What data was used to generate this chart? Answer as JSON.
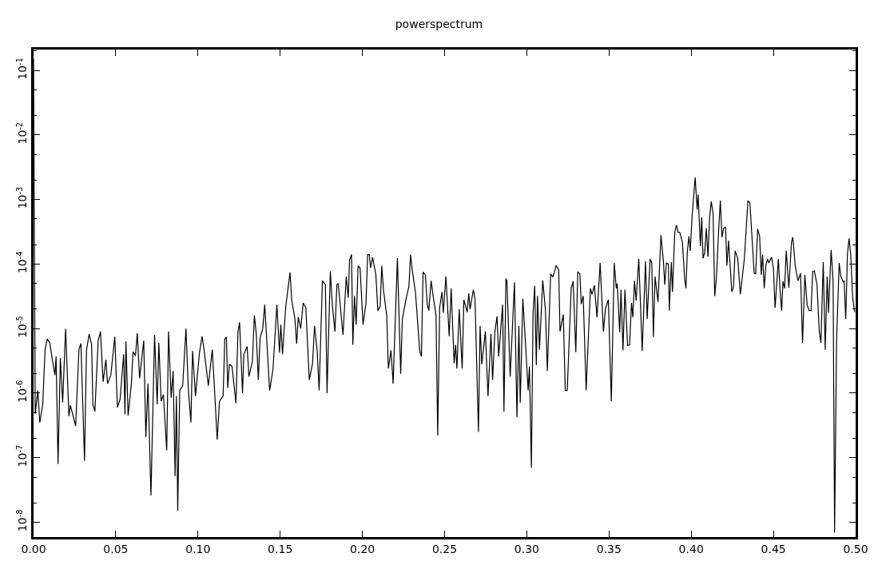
{
  "chart_data": {
    "type": "line",
    "title": "powerspectrum",
    "log": "y",
    "grid": false,
    "line_style": "solid",
    "marker": "none",
    "color": "#000000",
    "xlim": [
      0,
      0.5
    ],
    "ylim": [
      5.9e-09,
      0.21
    ],
    "xticks": [
      {
        "value": 0,
        "label": "0.00"
      },
      {
        "value": 0.05,
        "label": "0.05"
      },
      {
        "value": 0.1,
        "label": "0.10"
      },
      {
        "value": 0.15,
        "label": "0.15"
      },
      {
        "value": 0.2,
        "label": "0.20"
      },
      {
        "value": 0.25,
        "label": "0.25"
      },
      {
        "value": 0.3,
        "label": "0.30"
      },
      {
        "value": 0.35,
        "label": "0.35"
      },
      {
        "value": 0.4,
        "label": "0.40"
      },
      {
        "value": 0.45,
        "label": "0.45"
      },
      {
        "value": 0.5,
        "label": "0.50"
      }
    ],
    "yticks": [
      {
        "value": 1e-08,
        "label": "10$^{-8}$"
      },
      {
        "value": 1e-07,
        "label": "10$^{-7}$"
      },
      {
        "value": 1e-06,
        "label": "10$^{-6}$"
      },
      {
        "value": 1e-05,
        "label": "10$^{-5}$"
      },
      {
        "value": 0.0001,
        "label": "10$^{-4}$"
      },
      {
        "value": 0.001,
        "label": "10$^{-3}$"
      },
      {
        "value": 0.01,
        "label": "10$^{-2}$"
      },
      {
        "value": 0.1,
        "label": "10$^{-1}$"
      }
    ],
    "x": [
      0,
      0.001,
      0.0026,
      0.0038,
      0.0056,
      0.007,
      0.0083,
      0.0099,
      0.0115,
      0.013,
      0.0137,
      0.0149,
      0.0163,
      0.0177,
      0.0195,
      0.0215,
      0.0224,
      0.0256,
      0.0276,
      0.0288,
      0.031,
      0.0322,
      0.0338,
      0.0353,
      0.0361,
      0.0373,
      0.0393,
      0.0407,
      0.0423,
      0.044,
      0.045,
      0.047,
      0.0494,
      0.051,
      0.0526,
      0.0548,
      0.0556,
      0.0562,
      0.0575,
      0.0595,
      0.0605,
      0.062,
      0.0631,
      0.0645,
      0.067,
      0.0683,
      0.0696,
      0.0714,
      0.0736,
      0.0752,
      0.0762,
      0.0776,
      0.079,
      0.081,
      0.0821,
      0.0837,
      0.0849,
      0.0861,
      0.0869,
      0.0877,
      0.0889,
      0.0907,
      0.0927,
      0.0941,
      0.0957,
      0.0967,
      0.0985,
      0.1009,
      0.1025,
      0.1037,
      0.1063,
      0.1087,
      0.1101,
      0.1117,
      0.1131,
      0.1153,
      0.1163,
      0.1173,
      0.1181,
      0.1191,
      0.1207,
      0.1231,
      0.1243,
      0.1253,
      0.1271,
      0.1279,
      0.1299,
      0.131,
      0.1331,
      0.1343,
      0.1355,
      0.1367,
      0.1378,
      0.1394,
      0.1406,
      0.1436,
      0.1456,
      0.148,
      0.1496,
      0.1504,
      0.1514,
      0.1534,
      0.156,
      0.157,
      0.159,
      0.16,
      0.161,
      0.1625,
      0.164,
      0.1656,
      0.1677,
      0.1697,
      0.1709,
      0.1725,
      0.1737,
      0.1757,
      0.1775,
      0.1785,
      0.1805,
      0.1817,
      0.1833,
      0.1845,
      0.1853,
      0.1882,
      0.1902,
      0.1914,
      0.1922,
      0.1934,
      0.1942,
      0.1952,
      0.1962,
      0.1974,
      0.1986,
      0.2004,
      0.2022,
      0.2032,
      0.2042,
      0.205,
      0.2062,
      0.2082,
      0.2094,
      0.2108,
      0.2118,
      0.2128,
      0.2148,
      0.2158,
      0.2174,
      0.2187,
      0.2213,
      0.2233,
      0.2243,
      0.2267,
      0.2283,
      0.2293,
      0.2303,
      0.2323,
      0.2349,
      0.2359,
      0.2369,
      0.2383,
      0.2395,
      0.2404,
      0.2418,
      0.2432,
      0.2448,
      0.2458,
      0.247,
      0.2484,
      0.2492,
      0.2508,
      0.2528,
      0.254,
      0.2558,
      0.2567,
      0.2575,
      0.2589,
      0.2607,
      0.2617,
      0.2637,
      0.2647,
      0.2655,
      0.2675,
      0.2685,
      0.2706,
      0.2716,
      0.2726,
      0.2748,
      0.2764,
      0.2782,
      0.2792,
      0.2806,
      0.2819,
      0.2829,
      0.2853,
      0.2861,
      0.2873,
      0.2879,
      0.2899,
      0.2925,
      0.294,
      0.2952,
      0.296,
      0.2976,
      0.2992,
      0.3008,
      0.3016,
      0.3028,
      0.3038,
      0.3048,
      0.3058,
      0.3065,
      0.3077,
      0.3097,
      0.3113,
      0.3125,
      0.3145,
      0.3159,
      0.3179,
      0.3194,
      0.3202,
      0.3222,
      0.3234,
      0.3246,
      0.327,
      0.3282,
      0.3298,
      0.331,
      0.3323,
      0.3331,
      0.3343,
      0.3361,
      0.3387,
      0.3397,
      0.3411,
      0.3427,
      0.3446,
      0.3466,
      0.3478,
      0.3496,
      0.3514,
      0.3532,
      0.3544,
      0.355,
      0.3565,
      0.3573,
      0.3585,
      0.3597,
      0.3613,
      0.3625,
      0.3637,
      0.3645,
      0.3655,
      0.3665,
      0.3681,
      0.3702,
      0.3722,
      0.3732,
      0.375,
      0.376,
      0.377,
      0.378,
      0.3798,
      0.3816,
      0.3831,
      0.3839,
      0.3849,
      0.3861,
      0.3867,
      0.3879,
      0.3886,
      0.39,
      0.391,
      0.392,
      0.393,
      0.3946,
      0.396,
      0.3968,
      0.3976,
      0.3986,
      0.3994,
      0.4006,
      0.4024,
      0.4036,
      0.4042,
      0.4056,
      0.4064,
      0.4072,
      0.4082,
      0.4092,
      0.4102,
      0.4112,
      0.4122,
      0.4133,
      0.4143,
      0.4153,
      0.4167,
      0.4177,
      0.4187,
      0.4197,
      0.4209,
      0.4217,
      0.4227,
      0.4247,
      0.4257,
      0.4267,
      0.4283,
      0.4299,
      0.4323,
      0.4345,
      0.4357,
      0.4383,
      0.4392,
      0.4404,
      0.4416,
      0.4426,
      0.4434,
      0.4444,
      0.4454,
      0.4464,
      0.4472,
      0.4488,
      0.45,
      0.451,
      0.453,
      0.454,
      0.455,
      0.4558,
      0.4568,
      0.4578,
      0.4594,
      0.461,
      0.4618,
      0.4633,
      0.4649,
      0.4665,
      0.4677,
      0.4691,
      0.4705,
      0.4717,
      0.4729,
      0.4739,
      0.4749,
      0.4765,
      0.4779,
      0.4789,
      0.4803,
      0.4815,
      0.4827,
      0.4835,
      0.4851,
      0.4863,
      0.4872,
      0.4884,
      0.49,
      0.491,
      0.4924,
      0.493,
      0.494,
      0.495,
      0.496,
      0.497,
      0.4982,
      0.4994
    ],
    "values": [
      0.15,
      4.8e-07,
      1.1e-06,
      3.5e-07,
      6.7e-07,
      4.7e-06,
      6.9e-06,
      6e-06,
      3.2e-06,
      1.9e-06,
      3.7e-06,
      8e-08,
      3.5e-06,
      7.2e-07,
      1e-05,
      4.4e-07,
      6.5e-07,
      3.1e-07,
      4.7e-06,
      5.9e-06,
      9e-08,
      4.6e-06,
      8.2e-06,
      5.7e-06,
      6.7e-07,
      5.2e-07,
      6.5e-06,
      9e-06,
      1.5e-06,
      3.3e-06,
      1.4e-06,
      1.9e-06,
      7.5e-06,
      6e-07,
      8e-07,
      4e-06,
      4.7e-07,
      6.3e-06,
      4.5e-07,
      1.4e-06,
      4.4e-06,
      3.8e-06,
      8.5e-06,
      1.7e-06,
      6.5e-06,
      2.1e-07,
      1.4e-06,
      2.6e-08,
      8e-06,
      6.7e-07,
      6e-06,
      7.5e-07,
      9.5e-07,
      1.3e-07,
      9e-06,
      8.5e-07,
      2.2e-06,
      5.2e-08,
      9e-07,
      1.5e-08,
      1.1e-06,
      1.3e-06,
      1e-05,
      1.2e-06,
      3.5e-07,
      4.5e-06,
      9e-07,
      4.2e-06,
      7.6e-06,
      4.7e-06,
      1.3e-06,
      4.7e-06,
      1.1e-06,
      1.9e-07,
      7.5e-07,
      9e-07,
      6.8e-06,
      7.4e-06,
      1.2e-06,
      2.8e-06,
      2.6e-06,
      7e-07,
      8.6e-06,
      1.25e-05,
      1e-06,
      4e-06,
      5.3e-06,
      1.8e-06,
      3.1e-06,
      1.6e-05,
      8e-06,
      1.6e-06,
      7.2e-06,
      1e-05,
      2.35e-05,
      1.1e-06,
      2.3e-06,
      2.35e-05,
      4.2e-06,
      1.15e-05,
      4e-06,
      2.2e-05,
      7.4e-05,
      2.8e-05,
      1.4e-05,
      5.8e-06,
      1.5e-05,
      1e-05,
      2.5e-05,
      2.1e-05,
      1.6e-06,
      2.9e-06,
      1.1e-05,
      4.5e-06,
      1.1e-06,
      5.5e-05,
      4.8e-05,
      1e-06,
      7.7e-05,
      2.35e-05,
      9e-06,
      4.8e-05,
      5e-05,
      8e-06,
      6.4e-05,
      3e-05,
      0.000115,
      0.00014,
      5.6e-06,
      3.2e-05,
      1.15e-05,
      9.4e-05,
      8.7e-05,
      1.15e-05,
      2.5e-05,
      0.00014,
      0.00014,
      8.7e-05,
      0.000127,
      6.8e-05,
      1.9e-05,
      2.2e-05,
      9.4e-05,
      4e-05,
      1.6e-05,
      2.4e-06,
      4.6e-06,
      1.4e-06,
      0.000123,
      2e-06,
      1.4e-05,
      3e-05,
      4.5e-05,
      0.00014,
      8.2e-05,
      3.6e-05,
      4.5e-06,
      3.7e-06,
      7.5e-05,
      6.8e-05,
      2.35e-05,
      1.9e-05,
      5.5e-05,
      3e-05,
      1.6e-05,
      2.2e-07,
      2.1e-05,
      3.7e-05,
      1.75e-05,
      6.4e-05,
      7.6e-06,
      4.2e-05,
      2.9e-06,
      5.6e-06,
      2.4e-06,
      2e-05,
      2.4e-06,
      2.8e-05,
      1.8e-05,
      3.5e-05,
      2e-05,
      4e-05,
      2.9e-05,
      2.5e-07,
      1.1e-05,
      2.8e-06,
      9e-06,
      9e-07,
      8.3e-06,
      1.6e-06,
      9e-06,
      1.55e-05,
      3.7e-06,
      2.35e-05,
      5.2e-07,
      5.9e-05,
      5.5e-05,
      1.8e-06,
      5.2e-05,
      4.2e-07,
      1.1e-05,
      7.1e-07,
      2.9e-05,
      6e-06,
      1.1e-06,
      2.6e-06,
      7e-08,
      1.7e-05,
      4.6e-05,
      2.7e-06,
      3.2e-05,
      4.7e-06,
      5.6e-05,
      2e-05,
      2.2e-06,
      7e-05,
      6.3e-05,
      9.5e-05,
      8.1e-05,
      9e-06,
      1.65e-05,
      1.1e-06,
      1.1e-06,
      4.2e-05,
      5.4e-05,
      4.3e-06,
      7.6e-05,
      7e-05,
      2.4e-05,
      3.2e-05,
      1.1e-06,
      4.2e-05,
      3.4e-05,
      4.7e-05,
      1.5e-05,
      0.000104,
      9e-06,
      2e-05,
      2.8e-05,
      7.5e-07,
      0.000104,
      4.2e-05,
      5e-05,
      8.8e-06,
      4e-05,
      4.6e-06,
      4e-05,
      5.5e-06,
      5.6e-06,
      2.5e-05,
      1.5e-05,
      5.5e-05,
      2.7e-05,
      0.00012,
      4.5e-06,
      0.00011,
      1.4e-05,
      0.00012,
      0.000104,
      7.4e-06,
      6.4e-05,
      2.6e-05,
      0.00028,
      0.00011,
      4.8e-05,
      0.000104,
      0.0001,
      1.9e-05,
      0.000107,
      3.7e-05,
      0.00031,
      0.0004,
      0.00031,
      0.00031,
      0.00022,
      6e-05,
      4.2e-05,
      0.00015,
      0.00027,
      0.00016,
      0.00058,
      0.0022,
      0.0007,
      0.0012,
      0.00019,
      0.00053,
      0.000123,
      0.00015,
      0.00036,
      0.00013,
      0.00053,
      0.00093,
      0.0006,
      3.2e-05,
      6e-05,
      0.00034,
      0.00096,
      0.00026,
      0.00036,
      0.00037,
      9.5e-05,
      0.00023,
      3.7e-05,
      4.4e-05,
      0.00016,
      0.000123,
      3.4e-05,
      0.00012,
      0.00096,
      0.00088,
      7.2e-05,
      7e-05,
      0.00035,
      0.00027,
      6.8e-05,
      0.00014,
      4.2e-05,
      9.5e-05,
      0.00012,
      0.000104,
      0.000128,
      8.7e-05,
      2.1e-05,
      0.00012,
      4e-05,
      1.9e-05,
      5.4e-05,
      4.2e-05,
      0.00016,
      4.3e-05,
      0.00022,
      0.00026,
      9.2e-05,
      5.5e-05,
      7.2e-05,
      6e-06,
      6.8e-05,
      2.35e-05,
      1.9e-05,
      1.9e-05,
      7.6e-05,
      7.8e-05,
      4.8e-05,
      9e-06,
      6e-06,
      0.000107,
      4.7e-06,
      6.4e-05,
      1.75e-05,
      0.000165,
      5.5e-05,
      6.9e-09,
      6.4e-06,
      0.000104,
      6.4e-05,
      5.3e-05,
      5.5e-05,
      1.4e-05,
      0.00014,
      0.00025,
      0.00014,
      3e-05,
      1.8e-05
    ]
  }
}
